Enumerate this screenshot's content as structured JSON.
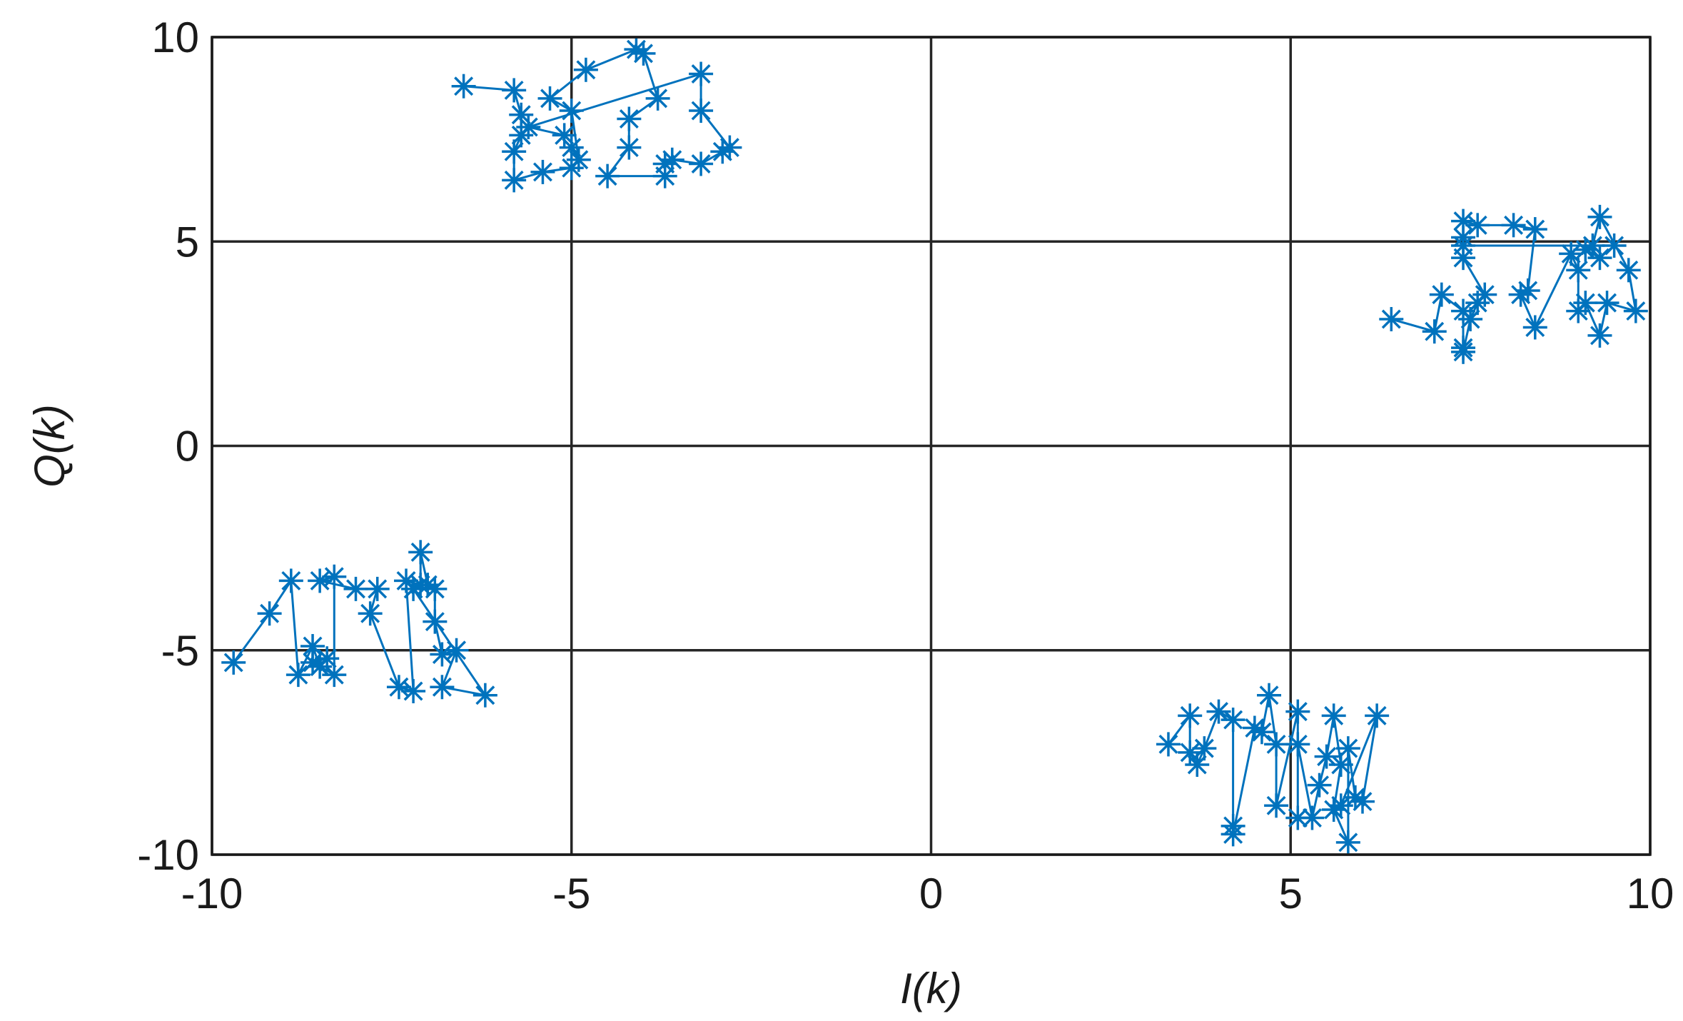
{
  "chart_data": {
    "type": "scatter",
    "title": "",
    "xlabel": "I(k)",
    "ylabel": "Q(k)",
    "xlim": [
      -10,
      10
    ],
    "ylim": [
      -10,
      10
    ],
    "xticks": [
      -10,
      -5,
      0,
      5,
      10
    ],
    "yticks": [
      -10,
      -5,
      0,
      5,
      10
    ],
    "xtick_labels": [
      "-10",
      "-5",
      "0",
      "5",
      "10"
    ],
    "ytick_labels": [
      "-10",
      "-5",
      "0",
      "5",
      "10"
    ],
    "grid": true,
    "marker": "asterisk",
    "color": "#0072BD",
    "series": [
      {
        "points": [
          [
            -6.5,
            8.8
          ],
          [
            -5.8,
            8.7
          ],
          [
            -5.7,
            8.1
          ],
          [
            -5.7,
            7.6
          ],
          [
            -5.8,
            7.2
          ],
          [
            -5.8,
            6.5
          ],
          [
            -5.4,
            6.7
          ],
          [
            -5.0,
            6.8
          ],
          [
            -5.0,
            7.3
          ],
          [
            -4.9,
            7.0
          ],
          [
            -5.0,
            8.2
          ],
          [
            -5.3,
            8.5
          ],
          [
            -4.8,
            9.2
          ],
          [
            -4.1,
            9.7
          ],
          [
            -4.0,
            9.6
          ],
          [
            -3.8,
            8.5
          ],
          [
            -4.2,
            8.0
          ],
          [
            -4.2,
            7.3
          ],
          [
            -4.5,
            6.6
          ],
          [
            -3.7,
            6.6
          ],
          [
            -3.7,
            6.9
          ],
          [
            -3.6,
            7.0
          ],
          [
            -3.2,
            6.9
          ],
          [
            -2.9,
            7.2
          ],
          [
            -2.8,
            7.3
          ],
          [
            -3.2,
            8.2
          ],
          [
            -3.2,
            9.1
          ],
          [
            -5.6,
            7.8
          ],
          [
            -5.1,
            7.6
          ]
        ]
      },
      {
        "points": [
          [
            6.4,
            3.1
          ],
          [
            7.0,
            2.8
          ],
          [
            7.1,
            3.7
          ],
          [
            7.4,
            3.3
          ],
          [
            7.4,
            2.4
          ],
          [
            7.4,
            2.3
          ],
          [
            7.5,
            3.1
          ],
          [
            7.6,
            3.5
          ],
          [
            7.7,
            3.7
          ],
          [
            7.4,
            4.6
          ],
          [
            7.4,
            5.1
          ],
          [
            7.4,
            5.5
          ],
          [
            7.6,
            5.4
          ],
          [
            8.1,
            5.4
          ],
          [
            8.4,
            5.3
          ],
          [
            8.3,
            3.8
          ],
          [
            8.2,
            3.7
          ],
          [
            8.4,
            2.9
          ],
          [
            8.9,
            4.7
          ],
          [
            9.0,
            4.3
          ],
          [
            9.0,
            3.3
          ],
          [
            9.1,
            3.5
          ],
          [
            9.3,
            2.7
          ],
          [
            9.4,
            3.5
          ],
          [
            9.8,
            3.3
          ],
          [
            9.7,
            4.3
          ],
          [
            9.3,
            5.6
          ],
          [
            9.2,
            4.9
          ],
          [
            9.1,
            4.8
          ],
          [
            9.3,
            4.6
          ],
          [
            9.5,
            4.9
          ],
          [
            7.4,
            4.9
          ]
        ]
      },
      {
        "points": [
          [
            -9.7,
            -5.3
          ],
          [
            -9.2,
            -4.1
          ],
          [
            -8.9,
            -3.3
          ],
          [
            -8.8,
            -5.6
          ],
          [
            -8.6,
            -4.9
          ],
          [
            -8.5,
            -5.4
          ],
          [
            -8.4,
            -5.2
          ],
          [
            -8.6,
            -5.3
          ],
          [
            -8.3,
            -5.6
          ],
          [
            -8.3,
            -3.2
          ],
          [
            -8.5,
            -3.3
          ],
          [
            -8.0,
            -3.5
          ],
          [
            -7.7,
            -3.5
          ],
          [
            -7.8,
            -4.1
          ],
          [
            -7.4,
            -5.9
          ],
          [
            -7.2,
            -6.0
          ],
          [
            -7.3,
            -3.3
          ],
          [
            -7.1,
            -3.4
          ],
          [
            -7.1,
            -2.6
          ],
          [
            -7.0,
            -3.4
          ],
          [
            -6.9,
            -3.5
          ],
          [
            -6.9,
            -4.3
          ],
          [
            -6.8,
            -5.1
          ],
          [
            -6.6,
            -5.0
          ],
          [
            -6.8,
            -5.9
          ],
          [
            -6.2,
            -6.1
          ],
          [
            -7.2,
            -3.5
          ]
        ]
      },
      {
        "points": [
          [
            3.3,
            -7.3
          ],
          [
            3.6,
            -6.6
          ],
          [
            3.6,
            -7.5
          ],
          [
            3.7,
            -7.8
          ],
          [
            3.8,
            -7.4
          ],
          [
            4.0,
            -6.5
          ],
          [
            4.2,
            -6.7
          ],
          [
            4.2,
            -9.3
          ],
          [
            4.2,
            -9.5
          ],
          [
            4.5,
            -6.9
          ],
          [
            4.6,
            -7.0
          ],
          [
            4.7,
            -6.1
          ],
          [
            4.8,
            -7.3
          ],
          [
            4.8,
            -8.8
          ],
          [
            5.1,
            -6.5
          ],
          [
            5.1,
            -9.1
          ],
          [
            5.1,
            -7.3
          ],
          [
            5.3,
            -9.1
          ],
          [
            5.4,
            -8.3
          ],
          [
            5.5,
            -7.6
          ],
          [
            5.6,
            -6.6
          ],
          [
            5.7,
            -7.8
          ],
          [
            5.6,
            -8.9
          ],
          [
            5.8,
            -9.7
          ],
          [
            5.8,
            -7.4
          ],
          [
            5.9,
            -8.6
          ],
          [
            6.0,
            -8.7
          ],
          [
            6.2,
            -6.6
          ],
          [
            5.7,
            -8.8
          ]
        ]
      }
    ]
  }
}
